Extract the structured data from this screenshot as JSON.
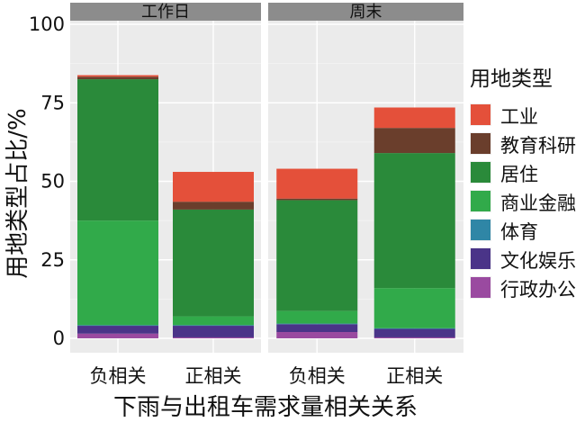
{
  "chart_data": {
    "type": "bar",
    "stacked": true,
    "facets": [
      {
        "label": "工作日",
        "categories": [
          "负相关",
          "正相关"
        ],
        "series": [
          {
            "name": "行政办公",
            "values": [
              1.5,
              0.3
            ]
          },
          {
            "name": "文化娱乐",
            "values": [
              2.5,
              3.7
            ]
          },
          {
            "name": "体育",
            "values": [
              0.2,
              0.2
            ]
          },
          {
            "name": "商业金融",
            "values": [
              33.3,
              2.8
            ]
          },
          {
            "name": "居住",
            "values": [
              45.0,
              34.0
            ]
          },
          {
            "name": "教育科研",
            "values": [
              0.8,
              2.5
            ]
          },
          {
            "name": "工业",
            "values": [
              0.5,
              9.5
            ]
          }
        ]
      },
      {
        "label": "周末",
        "categories": [
          "负相关",
          "正相关"
        ],
        "series": [
          {
            "name": "行政办公",
            "values": [
              2.0,
              0.3
            ]
          },
          {
            "name": "文化娱乐",
            "values": [
              2.5,
              2.7
            ]
          },
          {
            "name": "体育",
            "values": [
              0.2,
              0.2
            ]
          },
          {
            "name": "商业金融",
            "values": [
              4.0,
              12.8
            ]
          },
          {
            "name": "居住",
            "values": [
              35.3,
              43.0
            ]
          },
          {
            "name": "教育科研",
            "values": [
              0.5,
              8.0
            ]
          },
          {
            "name": "工业",
            "values": [
              9.5,
              6.5
            ]
          }
        ]
      }
    ],
    "xlabel": "下雨与出租车需求量相关关系",
    "ylabel": "用地类型占比/%",
    "ylim": [
      0,
      100
    ],
    "yticks": [
      0,
      25,
      50,
      75,
      100
    ],
    "grid": true,
    "legend": {
      "title": "用地类型",
      "placement": "right",
      "entries": [
        "工业",
        "教育科研",
        "居住",
        "商业金融",
        "体育",
        "文化娱乐",
        "行政办公"
      ]
    },
    "colors": {
      "工业": "#e4503a",
      "教育科研": "#6a3e2c",
      "居住": "#2a8a3a",
      "商业金融": "#31aa4a",
      "体育": "#2f86a6",
      "文化娱乐": "#4a3488",
      "行政办公": "#9a4aa0",
      "panel_background": "#ebebeb",
      "strip_background": "#8c8c8c"
    }
  }
}
